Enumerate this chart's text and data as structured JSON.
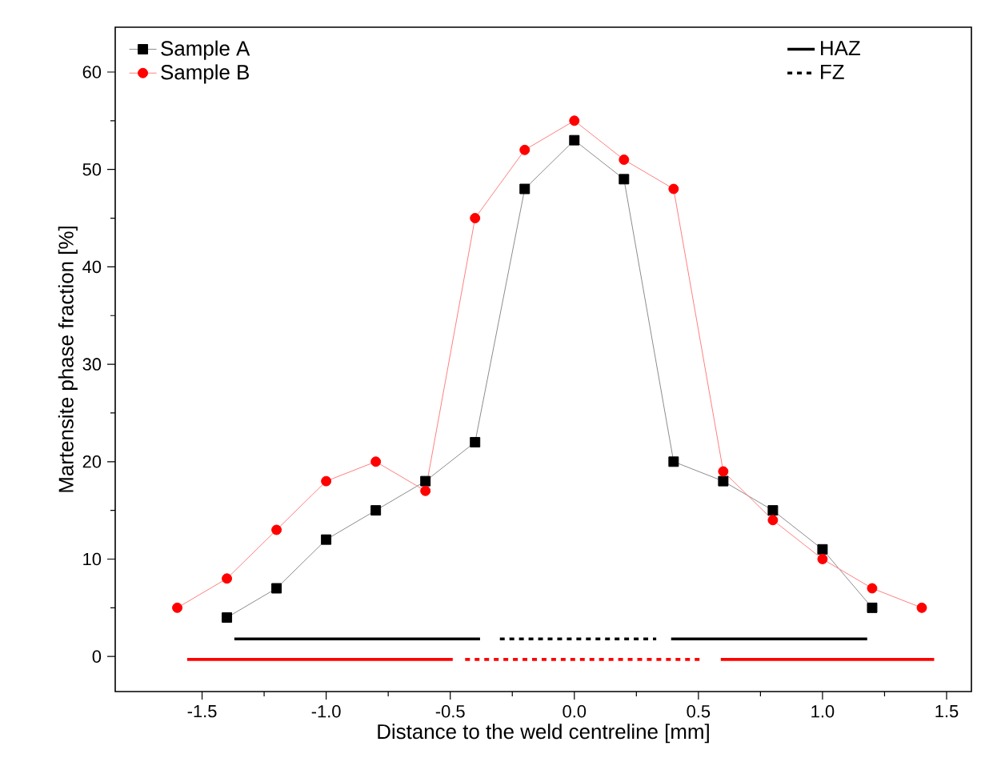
{
  "chart_data": {
    "type": "line",
    "xlabel": "Distance to the weld centreline [mm]",
    "ylabel": "Martensite phase fraction [%]",
    "xlim": [
      -1.85,
      1.6
    ],
    "ylim": [
      -3.6,
      64.6
    ],
    "xticks": [
      {
        "value": -1.5,
        "label": "-1.5"
      },
      {
        "value": -1.0,
        "label": "-1.0"
      },
      {
        "value": -0.5,
        "label": "-0.5"
      },
      {
        "value": 0,
        "label": "0.0"
      },
      {
        "value": 0.5,
        "label": "0.5"
      },
      {
        "value": 1.0,
        "label": "1.0"
      },
      {
        "value": 1.5,
        "label": "1.5"
      }
    ],
    "yticks": [
      0,
      10,
      20,
      30,
      40,
      50,
      60
    ],
    "grid": false,
    "legend": "top left",
    "series": [
      {
        "name": "Sample A",
        "color": "#000000",
        "marker": "square",
        "line_style": "solid",
        "x": [
          -1.4,
          -1.2,
          -1.0,
          -0.8,
          -0.6,
          -0.4,
          -0.2,
          0,
          0.2,
          0.4,
          0.6,
          0.8,
          1.0,
          1.2
        ],
        "values": [
          4,
          7,
          12,
          15,
          18,
          22,
          48,
          53,
          49,
          20,
          18,
          15,
          11,
          5
        ]
      },
      {
        "name": "HAZ",
        "color": "#000000",
        "marker": "none",
        "line_style": "solid",
        "x": [
          -1.37,
          -0.38
        ],
        "values": [
          1.8,
          1.8
        ]
      },
      {
        "name": "Sample B",
        "color": "#ff0000",
        "marker": "circle",
        "line_style": "solid",
        "x": [
          -1.6,
          -1.4,
          -1.2,
          -1.0,
          -0.8,
          -0.6,
          -0.4,
          -0.2,
          0,
          0.2,
          0.4,
          0.6,
          0.8,
          1.0,
          1.2,
          1.4
        ],
        "values": [
          5,
          8,
          13,
          18,
          20,
          17,
          45,
          52,
          55,
          51,
          48,
          19,
          14,
          10,
          7,
          5
        ]
      },
      {
        "name": "FZ",
        "color": "#000000",
        "marker": "none",
        "line_style": "dashed",
        "x": [
          -0.3,
          0.33
        ],
        "values": [
          1.8,
          1.8
        ]
      },
      {
        "color": "#000000",
        "marker": "none",
        "line_style": "solid",
        "x": [
          0.39,
          1.18
        ],
        "values": [
          1.8,
          1.8
        ]
      },
      {
        "color": "#ff0000",
        "marker": "none",
        "line_style": "solid",
        "x": [
          -1.56,
          -0.49
        ],
        "values": [
          -0.3,
          -0.3
        ]
      },
      {
        "color": "#ff0000",
        "marker": "none",
        "line_style": "dashed",
        "x": [
          -0.44,
          0.52
        ],
        "values": [
          -0.3,
          -0.3
        ]
      },
      {
        "color": "#ff0000",
        "marker": "none",
        "line_style": "solid",
        "x": [
          0.59,
          1.45
        ],
        "values": [
          -0.3,
          -0.3
        ]
      }
    ]
  }
}
